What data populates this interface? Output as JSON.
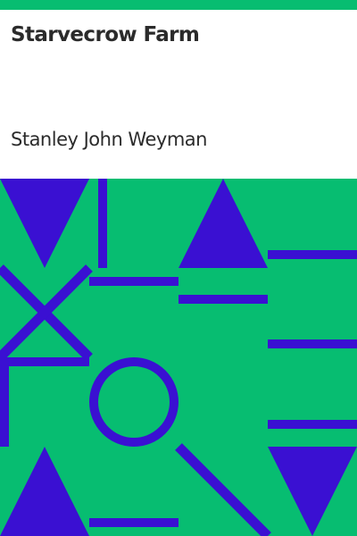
{
  "cover": {
    "title": "Starvecrow Farm",
    "author": "Stanley John Weyman",
    "colors": {
      "stripe": "#07bd71",
      "pattern_background": "#07bd71",
      "pattern_shapes": "#3a10d2",
      "text": "#2b2b2b"
    }
  }
}
